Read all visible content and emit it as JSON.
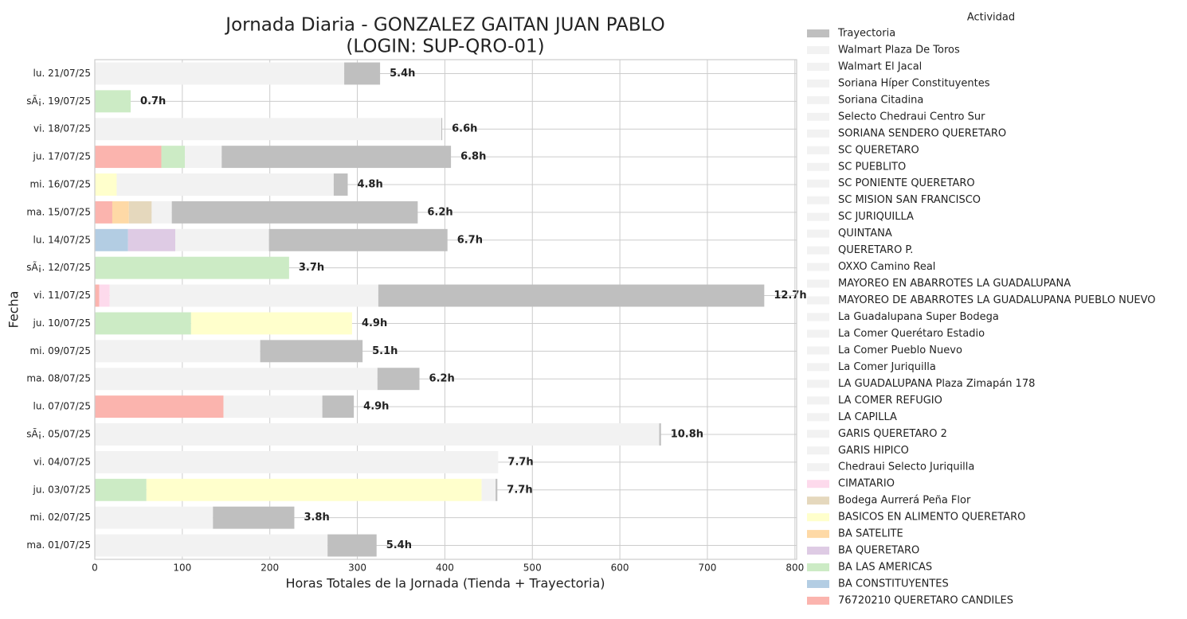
{
  "chart_data": {
    "type": "stacked-bar-horizontal",
    "title": "Jornada Diaria - GONZALEZ GAITAN JUAN PABLO",
    "subtitle": "(LOGIN: SUP-QRO-01)",
    "x_label": "Horas Totales de la Jornada (Tienda + Trayectoria)",
    "y_label": "Fecha",
    "legend_title": "Actividad",
    "legend_position": "outside-right",
    "grid": true,
    "xlim": [
      0,
      802
    ],
    "xticks": [
      0,
      100,
      200,
      300,
      400,
      500,
      600,
      700,
      800
    ],
    "categories": [
      "lu. 21/07/25",
      "sÃ¡. 19/07/25",
      "vi. 18/07/25",
      "ju. 17/07/25",
      "mi. 16/07/25",
      "ma. 15/07/25",
      "lu. 14/07/25",
      "sÃ¡. 12/07/25",
      "vi. 11/07/25",
      "ju. 10/07/25",
      "mi. 09/07/25",
      "ma. 08/07/25",
      "lu. 07/07/25",
      "sÃ¡. 05/07/25",
      "vi. 04/07/25",
      "ju. 03/07/25",
      "mi. 02/07/25",
      "ma. 01/07/25"
    ],
    "total_labels": [
      "5.4h",
      "0.7h",
      "6.6h",
      "6.8h",
      "4.8h",
      "6.2h",
      "6.7h",
      "3.7h",
      "12.7h",
      "4.9h",
      "5.1h",
      "6.2h",
      "4.9h",
      "10.8h",
      "7.7h",
      "7.7h",
      "3.8h",
      "5.4h"
    ],
    "series": [
      {
        "name": "Trayectoria",
        "color": "#bfbfbf",
        "values": [
          41,
          0,
          1,
          262,
          16,
          281,
          204,
          0,
          441,
          0,
          117,
          48,
          36,
          2,
          0,
          2,
          93,
          56
        ]
      },
      {
        "name": "Walmart Plaza De Toros",
        "color": "#f2f2f2",
        "values": [
          285,
          0,
          0,
          0,
          0,
          0,
          0,
          0,
          0,
          0,
          0,
          0,
          0,
          0,
          0,
          0,
          0,
          0
        ]
      },
      {
        "name": "Walmart El Jacal",
        "color": "#f2f2f2",
        "values": [
          0,
          0,
          396,
          0,
          0,
          0,
          0,
          0,
          0,
          0,
          0,
          0,
          0,
          0,
          0,
          0,
          0,
          0
        ]
      },
      {
        "name": "Soriana Híper Constituyentes",
        "color": "#f2f2f2",
        "values": [
          0,
          0,
          0,
          42,
          0,
          0,
          0,
          0,
          0,
          0,
          0,
          0,
          0,
          0,
          0,
          0,
          0,
          0
        ]
      },
      {
        "name": "Soriana Citadina",
        "color": "#f2f2f2",
        "values": [
          0,
          0,
          0,
          0,
          248,
          0,
          0,
          0,
          0,
          0,
          0,
          0,
          0,
          0,
          0,
          0,
          0,
          0
        ]
      },
      {
        "name": "Selecto Chedraui Centro Sur",
        "color": "#f2f2f2",
        "values": [
          0,
          0,
          0,
          0,
          0,
          23,
          0,
          0,
          0,
          0,
          0,
          0,
          0,
          0,
          0,
          0,
          0,
          0
        ]
      },
      {
        "name": "SORIANA SENDERO QUERETARO",
        "color": "#f2f2f2",
        "values": [
          0,
          0,
          0,
          0,
          0,
          0,
          107,
          0,
          0,
          0,
          0,
          0,
          0,
          0,
          0,
          0,
          0,
          0
        ]
      },
      {
        "name": "SC QUERETARO",
        "color": "#f2f2f2",
        "values": [
          0,
          0,
          0,
          0,
          0,
          0,
          0,
          0,
          307,
          0,
          0,
          0,
          0,
          0,
          0,
          0,
          0,
          0
        ]
      },
      {
        "name": "SC PUEBLITO",
        "color": "#f2f2f2",
        "values": [
          0,
          0,
          0,
          0,
          0,
          0,
          0,
          0,
          0,
          0,
          189,
          0,
          0,
          0,
          0,
          0,
          0,
          0
        ]
      },
      {
        "name": "SC PONIENTE QUERETARO",
        "color": "#f2f2f2",
        "values": [
          0,
          0,
          0,
          0,
          0,
          0,
          0,
          0,
          0,
          0,
          0,
          323,
          0,
          0,
          0,
          0,
          0,
          0
        ]
      },
      {
        "name": "SC MISION SAN FRANCISCO",
        "color": "#f2f2f2",
        "values": [
          0,
          0,
          0,
          0,
          0,
          0,
          0,
          0,
          0,
          0,
          0,
          0,
          113,
          0,
          0,
          0,
          0,
          0
        ]
      },
      {
        "name": "SC JURIQUILLA",
        "color": "#f2f2f2",
        "values": [
          0,
          0,
          0,
          0,
          0,
          0,
          0,
          0,
          0,
          0,
          0,
          0,
          0,
          645,
          0,
          0,
          0,
          0
        ]
      },
      {
        "name": "QUINTANA",
        "color": "#f2f2f2",
        "values": [
          0,
          0,
          0,
          0,
          0,
          0,
          0,
          0,
          0,
          0,
          0,
          0,
          0,
          0,
          461,
          0,
          0,
          0
        ]
      },
      {
        "name": "QUERETARO P.",
        "color": "#f2f2f2",
        "values": [
          0,
          0,
          0,
          0,
          0,
          0,
          0,
          0,
          0,
          0,
          0,
          0,
          0,
          0,
          0,
          16,
          0,
          0
        ]
      },
      {
        "name": "OXXO Camino Real",
        "color": "#f2f2f2",
        "values": [
          0,
          0,
          0,
          0,
          0,
          0,
          0,
          0,
          0,
          0,
          0,
          0,
          0,
          0,
          0,
          0,
          135,
          0
        ]
      },
      {
        "name": "MAYOREO EN ABARROTES LA GUADALUPANA",
        "color": "#f2f2f2",
        "values": [
          0,
          0,
          0,
          0,
          0,
          0,
          0,
          0,
          0,
          0,
          0,
          0,
          0,
          0,
          0,
          0,
          0,
          266
        ]
      },
      {
        "name": "MAYOREO DE ABARROTES LA GUADALUPANA PUEBLO NUEVO",
        "color": "#f2f2f2",
        "values": [
          0,
          0,
          0,
          0,
          0,
          0,
          0,
          0,
          0,
          0,
          0,
          0,
          0,
          0,
          0,
          0,
          0,
          0
        ]
      },
      {
        "name": "La Guadalupana Super Bodega",
        "color": "#f2f2f2",
        "values": [
          0,
          0,
          0,
          0,
          0,
          0,
          0,
          0,
          0,
          0,
          0,
          0,
          0,
          0,
          0,
          0,
          0,
          0
        ]
      },
      {
        "name": "La Comer Querétaro Estadio",
        "color": "#f2f2f2",
        "values": [
          0,
          0,
          0,
          0,
          0,
          0,
          0,
          0,
          0,
          0,
          0,
          0,
          0,
          0,
          0,
          0,
          0,
          0
        ]
      },
      {
        "name": "La Comer Pueblo Nuevo",
        "color": "#f2f2f2",
        "values": [
          0,
          0,
          0,
          0,
          0,
          0,
          0,
          0,
          0,
          0,
          0,
          0,
          0,
          0,
          0,
          0,
          0,
          0
        ]
      },
      {
        "name": "La Comer Juriquilla",
        "color": "#f2f2f2",
        "values": [
          0,
          0,
          0,
          0,
          0,
          0,
          0,
          0,
          0,
          0,
          0,
          0,
          0,
          0,
          0,
          0,
          0,
          0
        ]
      },
      {
        "name": "LA GUADALUPANA Plaza Zimapán 178",
        "color": "#f2f2f2",
        "values": [
          0,
          0,
          0,
          0,
          0,
          0,
          0,
          0,
          0,
          0,
          0,
          0,
          0,
          0,
          0,
          0,
          0,
          0
        ]
      },
      {
        "name": "LA COMER REFUGIO",
        "color": "#f2f2f2",
        "values": [
          0,
          0,
          0,
          0,
          0,
          0,
          0,
          0,
          0,
          0,
          0,
          0,
          0,
          0,
          0,
          0,
          0,
          0
        ]
      },
      {
        "name": "LA CAPILLA",
        "color": "#f2f2f2",
        "values": [
          0,
          0,
          0,
          0,
          0,
          0,
          0,
          0,
          0,
          0,
          0,
          0,
          0,
          0,
          0,
          0,
          0,
          0
        ]
      },
      {
        "name": "GARIS QUERETARO 2",
        "color": "#f2f2f2",
        "values": [
          0,
          0,
          0,
          0,
          0,
          0,
          0,
          0,
          0,
          0,
          0,
          0,
          0,
          0,
          0,
          0,
          0,
          0
        ]
      },
      {
        "name": "GARIS HIPICO",
        "color": "#f2f2f2",
        "values": [
          0,
          0,
          0,
          0,
          0,
          0,
          0,
          0,
          0,
          0,
          0,
          0,
          0,
          0,
          0,
          0,
          0,
          0
        ]
      },
      {
        "name": "Chedraui Selecto Juriquilla",
        "color": "#f2f2f2",
        "values": [
          0,
          0,
          0,
          0,
          0,
          0,
          0,
          0,
          0,
          0,
          0,
          0,
          0,
          0,
          0,
          0,
          0,
          0
        ]
      },
      {
        "name": "CIMATARIO",
        "color": "#fddaec",
        "values": [
          0,
          0,
          0,
          0,
          0,
          0,
          0,
          0,
          12,
          0,
          0,
          0,
          0,
          0,
          0,
          0,
          0,
          0
        ]
      },
      {
        "name": "Bodega Aurrerá Peña Flor",
        "color": "#e5d8bd",
        "values": [
          0,
          0,
          0,
          0,
          0,
          26,
          0,
          0,
          0,
          0,
          0,
          0,
          0,
          0,
          0,
          0,
          0,
          0
        ]
      },
      {
        "name": "BASICOS EN ALIMENTO QUERETARO",
        "color": "#ffffcc",
        "values": [
          0,
          0,
          0,
          0,
          25,
          0,
          0,
          0,
          0,
          184,
          0,
          0,
          0,
          0,
          0,
          383,
          0,
          0
        ]
      },
      {
        "name": "BA SATELITE",
        "color": "#fed9a6",
        "values": [
          0,
          0,
          0,
          0,
          0,
          19,
          0,
          0,
          0,
          0,
          0,
          0,
          0,
          0,
          0,
          0,
          0,
          0
        ]
      },
      {
        "name": "BA QUERETARO",
        "color": "#decbe4",
        "values": [
          0,
          0,
          0,
          0,
          0,
          0,
          54,
          0,
          0,
          0,
          0,
          0,
          0,
          0,
          0,
          0,
          0,
          0
        ]
      },
      {
        "name": "BA LAS AMERICAS",
        "color": "#ccebc5",
        "values": [
          0,
          41,
          0,
          27,
          0,
          0,
          0,
          222,
          0,
          110,
          0,
          0,
          0,
          0,
          0,
          59,
          0,
          0
        ]
      },
      {
        "name": "BA CONSTITUYENTES",
        "color": "#b3cde3",
        "values": [
          0,
          0,
          0,
          0,
          0,
          0,
          38,
          0,
          0,
          0,
          0,
          0,
          0,
          0,
          0,
          0,
          0,
          0
        ]
      },
      {
        "name": "76720210 QUERETARO CANDILES",
        "color": "#fbb4ae",
        "values": [
          0,
          0,
          0,
          76,
          0,
          20,
          0,
          0,
          5,
          0,
          0,
          0,
          147,
          0,
          0,
          0,
          0,
          0
        ]
      }
    ]
  }
}
